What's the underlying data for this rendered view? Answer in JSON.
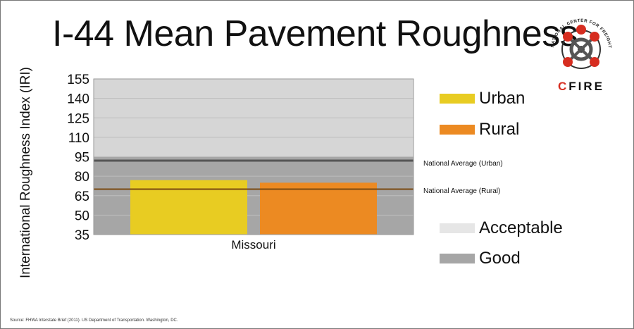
{
  "chart_data": {
    "type": "bar",
    "title": "I-44 Mean Pavement Roughness",
    "ylabel": "International Roughness Index (IRI)",
    "categories": [
      "Missouri"
    ],
    "series": [
      {
        "name": "Urban",
        "values": [
          77
        ],
        "color": "#e8cc22"
      },
      {
        "name": "Rural",
        "values": [
          75
        ],
        "color": "#ec8a22"
      }
    ],
    "yticks": [
      35,
      50,
      65,
      80,
      95,
      110,
      125,
      140,
      155
    ],
    "ylim": [
      35,
      155
    ],
    "bands": [
      {
        "name": "Acceptable",
        "range": [
          95,
          155
        ],
        "color": "#d6d6d6"
      },
      {
        "name": "Good",
        "range": [
          35,
          95
        ],
        "color": "#a6a6a6"
      }
    ],
    "reference_lines": [
      {
        "label": "National Average (Urban)",
        "value": 92,
        "color": "#555555"
      },
      {
        "label": "National Average (Rural)",
        "value": 70,
        "color": "#7a4a12"
      }
    ],
    "legend": {
      "position": "right",
      "entries": [
        {
          "label": "Urban",
          "color": "#e8cc22"
        },
        {
          "label": "Rural",
          "color": "#ec8a22"
        },
        {
          "label": "Acceptable",
          "color": "#e6e6e6"
        },
        {
          "label": "Good",
          "color": "#a6a6a6"
        }
      ]
    },
    "grid": true
  },
  "logo": {
    "ring_text": "NATIONAL CENTER FOR FREIGHT & INFRASTRUCTURE RESEARCH & EDUCATION",
    "wordmark_first": "C",
    "wordmark_rest": "FIRE"
  },
  "source": "Source: FHWA Interstate Brief (2011). US Department of Transportation. Washington, DC."
}
